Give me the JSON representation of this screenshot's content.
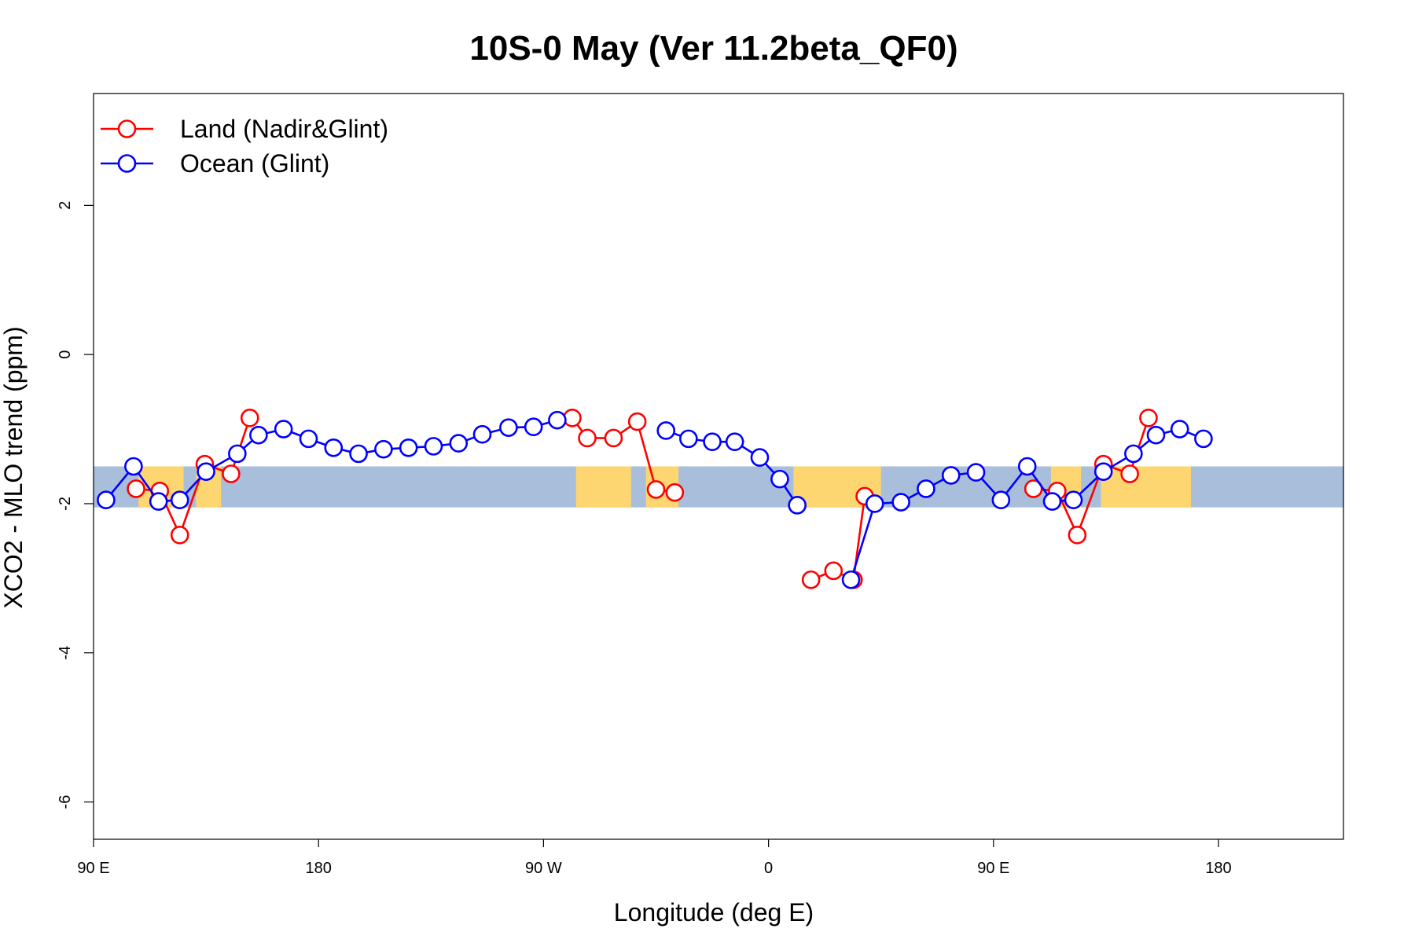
{
  "chart_data": {
    "type": "line",
    "title": "10S-0 May (Ver 11.2beta_QF0)",
    "xlabel": "Longitude (deg E)",
    "ylabel": "XCO2 - MLO trend (ppm)",
    "xlim": [
      90,
      590
    ],
    "ylim": [
      -6.5,
      3.5
    ],
    "x_ticks": [
      {
        "value": 90,
        "label": "90 E"
      },
      {
        "value": 180,
        "label": "180"
      },
      {
        "value": 270,
        "label": "90 W"
      },
      {
        "value": 360,
        "label": "0"
      },
      {
        "value": 450,
        "label": "90 E"
      },
      {
        "value": 540,
        "label": "180"
      }
    ],
    "y_ticks": [
      {
        "value": 2,
        "label": "2"
      },
      {
        "value": 0,
        "label": "0"
      },
      {
        "value": -2,
        "label": "-2"
      },
      {
        "value": -4,
        "label": "-4"
      },
      {
        "value": -6,
        "label": "-6"
      }
    ],
    "background_map": {
      "lat_band": "10S-0",
      "y_range": [
        -2.05,
        -1.5
      ],
      "ocean_color": "#a9bedb",
      "land_color": "#fdd671",
      "land_segments": [
        [
          108,
          126
        ],
        [
          131,
          141
        ],
        [
          283,
          305
        ],
        [
          311,
          324
        ],
        [
          370,
          405
        ],
        [
          473,
          485
        ],
        [
          493,
          529
        ]
      ]
    },
    "legend": {
      "position": "top-left"
    },
    "series": [
      {
        "name": "Land (Nadir&Glint)",
        "color": "#ff0000",
        "segments": [
          [
            [
              107,
              -1.8
            ],
            [
              116.5,
              -1.83
            ],
            [
              124.5,
              -2.42
            ],
            [
              134.5,
              -1.47
            ],
            [
              145,
              -1.6
            ],
            [
              152.5,
              -0.85
            ]
          ],
          [
            [
              281.5,
              -0.85
            ],
            [
              287.5,
              -1.12
            ],
            [
              298,
              -1.12
            ],
            [
              307.5,
              -0.9
            ],
            [
              315,
              -1.81
            ],
            [
              322.5,
              -1.85
            ]
          ],
          [
            [
              377,
              -3.02
            ],
            [
              386,
              -2.9
            ],
            [
              394,
              -3.02
            ],
            [
              398.5,
              -1.9
            ]
          ],
          [
            [
              466,
              -1.8
            ],
            [
              475.5,
              -1.83
            ],
            [
              483.5,
              -2.42
            ],
            [
              494,
              -1.47
            ],
            [
              504.5,
              -1.6
            ],
            [
              512,
              -0.85
            ]
          ]
        ]
      },
      {
        "name": "Ocean (Glint)",
        "color": "#0000ff",
        "segments": [
          [
            [
              95,
              -1.95
            ],
            [
              106,
              -1.5
            ],
            [
              116,
              -1.97
            ],
            [
              124.5,
              -1.95
            ],
            [
              135,
              -1.57
            ],
            [
              147.5,
              -1.33
            ],
            [
              156,
              -1.08
            ],
            [
              166,
              -1.0
            ],
            [
              176,
              -1.13
            ],
            [
              186,
              -1.25
            ],
            [
              196,
              -1.33
            ],
            [
              206,
              -1.27
            ],
            [
              216,
              -1.25
            ],
            [
              226,
              -1.23
            ],
            [
              236,
              -1.19
            ],
            [
              245.5,
              -1.07
            ],
            [
              256,
              -0.98
            ],
            [
              266,
              -0.97
            ],
            [
              275.5,
              -0.88
            ]
          ],
          [
            [
              319,
              -1.02
            ],
            [
              328,
              -1.13
            ],
            [
              337.5,
              -1.17
            ],
            [
              346.5,
              -1.17
            ],
            [
              356.5,
              -1.38
            ],
            [
              364.5,
              -1.67
            ],
            [
              371.5,
              -2.02
            ]
          ],
          [
            [
              393,
              -3.02
            ],
            [
              402.5,
              -2.0
            ],
            [
              413,
              -1.98
            ],
            [
              423,
              -1.8
            ],
            [
              433,
              -1.62
            ],
            [
              443,
              -1.58
            ],
            [
              453,
              -1.95
            ],
            [
              463.5,
              -1.5
            ],
            [
              473.5,
              -1.97
            ],
            [
              482,
              -1.95
            ],
            [
              494,
              -1.57
            ],
            [
              506,
              -1.33
            ],
            [
              515,
              -1.08
            ],
            [
              524.5,
              -1.0
            ],
            [
              534,
              -1.13
            ]
          ]
        ]
      }
    ]
  }
}
